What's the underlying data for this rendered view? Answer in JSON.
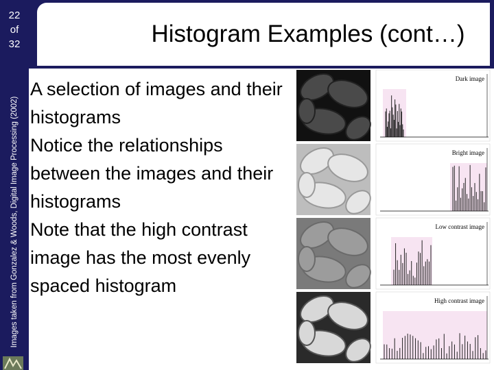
{
  "slide_number": {
    "current": "22",
    "of": "of",
    "total": "32"
  },
  "credit": "Images taken from Gonzalez & Woods, Digital Image Processing (2002)",
  "title": "Histogram Examples (cont…)",
  "body": {
    "paragraphs": [
      "A selection of images and their histograms",
      "Notice the relationships between the images and their histograms",
      "Note that the high contrast image has the most evenly spaced histogram"
    ]
  },
  "figures": [
    {
      "label": "Dark image"
    },
    {
      "label": "Bright image"
    },
    {
      "label": "Low contrast image"
    },
    {
      "label": "High contrast image"
    }
  ]
}
